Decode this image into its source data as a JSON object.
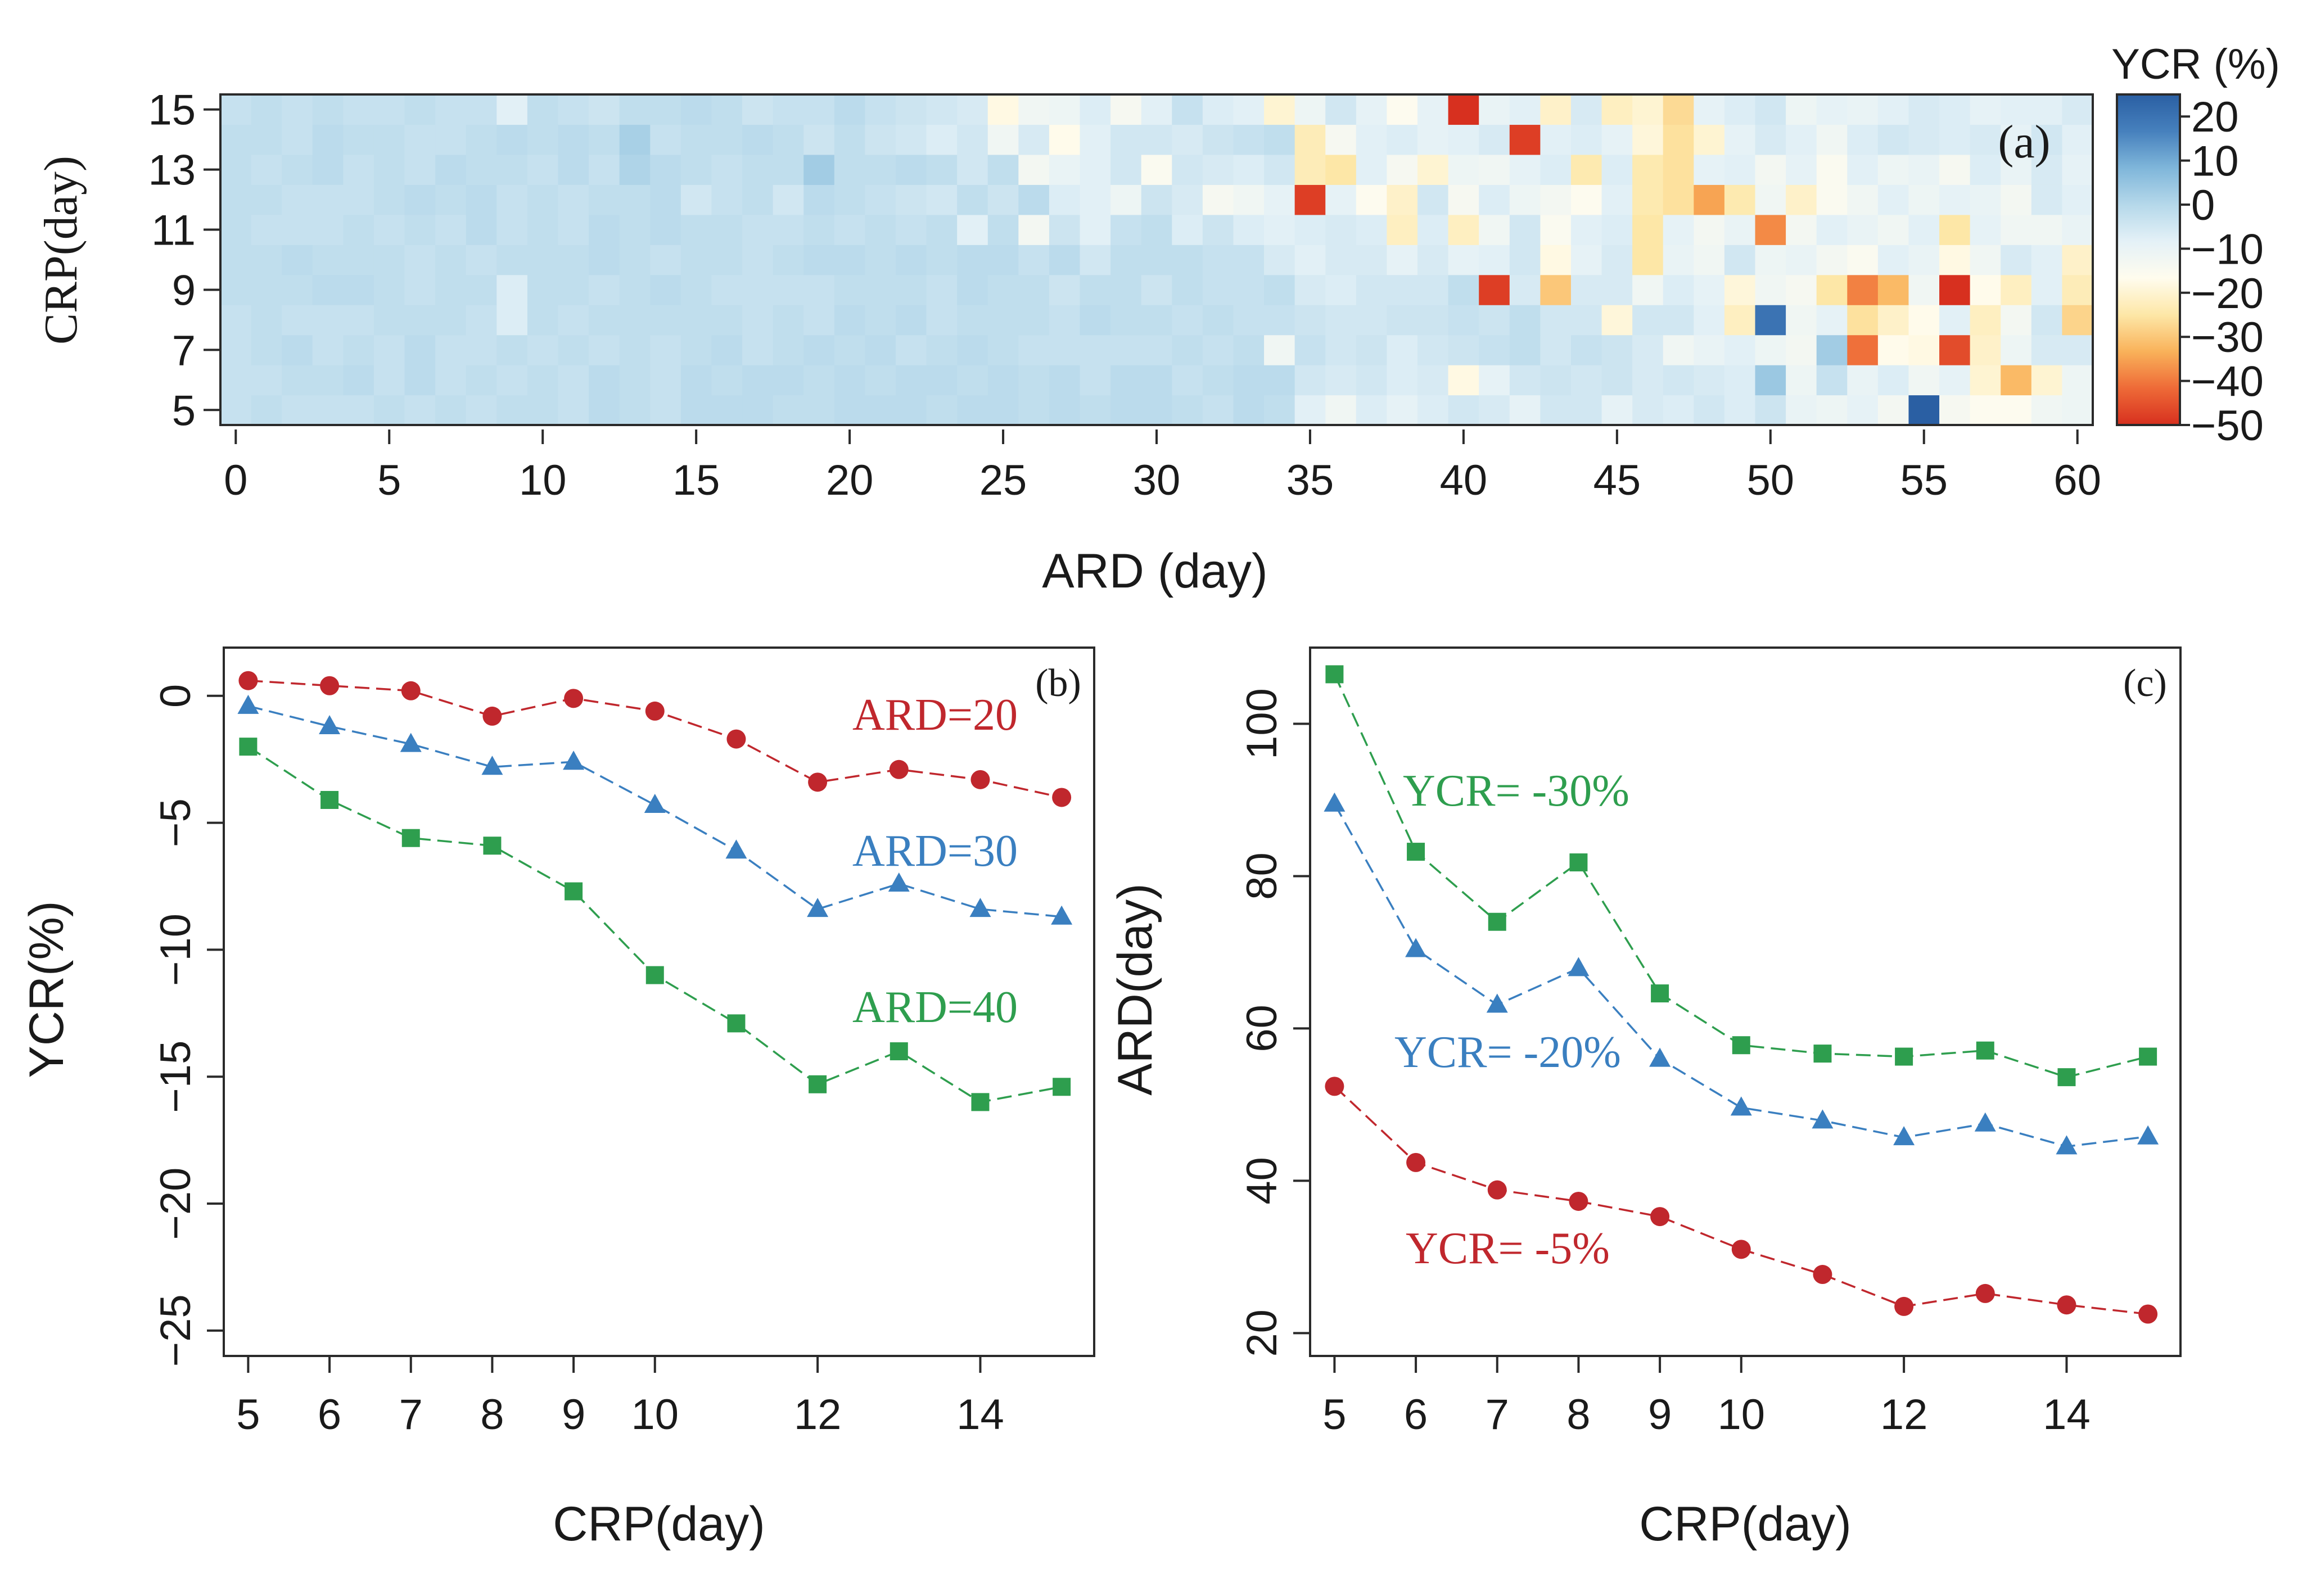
{
  "chart_data": [
    {
      "id": "a",
      "type": "heatmap",
      "panel_label": "(a)",
      "xlabel": "ARD (day)",
      "ylabel": "CRP(day)",
      "xticks": [
        0,
        5,
        10,
        15,
        20,
        25,
        30,
        35,
        40,
        45,
        50,
        55,
        60
      ],
      "xtick_labels": [
        "0",
        "5",
        "10",
        "15",
        "20",
        "25",
        "30",
        "35",
        "40",
        "45",
        "50",
        "55",
        "60"
      ],
      "yticks": [
        5,
        7,
        9,
        11,
        13,
        15
      ],
      "ytick_labels": [
        "5",
        "7",
        "9",
        "11",
        "13",
        "15"
      ],
      "x_range": [
        0,
        60
      ],
      "y_range": [
        5,
        15
      ],
      "colorbar": {
        "title": "YCR (%)",
        "range": [
          -50,
          25
        ],
        "tick_values": [
          20,
          10,
          0,
          -10,
          -20,
          -30,
          -40,
          -50
        ],
        "tick_labels": [
          "20",
          "10",
          "0",
          "−10",
          "−20",
          "−30",
          "−40",
          "−50"
        ],
        "stops": [
          "#d7301f",
          "#ee6a37",
          "#f9b25a",
          "#fde7a7",
          "#fffcee",
          "#e4f1f7",
          "#b5d8ea",
          "#7fb6da",
          "#4680bd",
          "#2a5fa3"
        ]
      },
      "rows": [
        {
          "crp": 5,
          "values": [
            -3,
            -2,
            -3,
            -3,
            -3,
            -2,
            -3,
            -2,
            -3,
            -2,
            -2,
            -3,
            -1,
            -2,
            -3,
            -1,
            -1,
            -1,
            -2,
            -2,
            -1,
            -1,
            -1,
            -2,
            -1,
            -1,
            -2,
            -1,
            -2,
            -1,
            -1,
            -2,
            -3,
            -1,
            -2,
            -8,
            -12,
            -7,
            -9,
            -7,
            -5,
            -6,
            -9,
            -5,
            -5,
            -9,
            -6,
            -7,
            -5,
            -7,
            -4,
            -10,
            -11,
            -9,
            -13,
            25,
            -14,
            -16,
            -16,
            -12,
            -11
          ]
        },
        {
          "crp": 6,
          "values": [
            -3,
            -3,
            -2,
            -2,
            -1,
            -3,
            -1,
            -3,
            -2,
            -3,
            -2,
            -3,
            -1,
            -2,
            -3,
            -1,
            -2,
            -1,
            -1,
            -2,
            -1,
            -2,
            -1,
            -1,
            -2,
            -1,
            -2,
            -1,
            -3,
            -1,
            -1,
            -3,
            -2,
            -1,
            -1,
            -5,
            -6,
            -5,
            -7,
            -6,
            -18,
            -9,
            -5,
            -4,
            -5,
            -4,
            -6,
            -5,
            -6,
            -7,
            4,
            -11,
            -3,
            -10,
            -7,
            -12,
            -9,
            -20,
            -32,
            -20,
            -11
          ]
        },
        {
          "crp": 7,
          "values": [
            -3,
            -2,
            -1,
            -3,
            -2,
            -3,
            -1,
            -3,
            -3,
            -2,
            -3,
            -2,
            -3,
            -2,
            -3,
            -2,
            -1,
            -3,
            -2,
            -1,
            -2,
            -1,
            -3,
            -2,
            -1,
            -2,
            -3,
            -3,
            -3,
            -3,
            -3,
            -2,
            -3,
            -2,
            -12,
            -3,
            -5,
            -4,
            -7,
            -5,
            -4,
            -3,
            -2,
            -5,
            -3,
            -4,
            -6,
            -12,
            -10,
            -8,
            -11,
            -13,
            3,
            -41,
            -17,
            -18,
            -46,
            -21,
            -11,
            -6,
            -6
          ]
        },
        {
          "crp": 8,
          "values": [
            -3,
            -2,
            -3,
            -3,
            -3,
            -2,
            -2,
            -2,
            -3,
            -7,
            -2,
            -3,
            -2,
            -2,
            -2,
            -2,
            -2,
            -3,
            -2,
            -3,
            -1,
            -2,
            -1,
            -3,
            -2,
            -2,
            -2,
            -3,
            -1,
            -2,
            -2,
            -3,
            -2,
            -3,
            -3,
            -4,
            -5,
            -5,
            -4,
            -4,
            -3,
            -4,
            -2,
            -5,
            -5,
            -19,
            -5,
            -5,
            -8,
            -22,
            20,
            -12,
            -9,
            -26,
            -21,
            -17,
            -8,
            -22,
            -13,
            -5,
            -28
          ]
        },
        {
          "crp": 9,
          "values": [
            -2,
            -2,
            -2,
            -1,
            -1,
            -2,
            -3,
            -2,
            -2,
            -7,
            -2,
            -2,
            -3,
            -2,
            -1,
            -2,
            -3,
            -3,
            -3,
            -3,
            -2,
            -2,
            -2,
            -3,
            -1,
            -2,
            -2,
            -4,
            -2,
            -2,
            -4,
            -2,
            -3,
            -3,
            -2,
            -6,
            -7,
            -5,
            -5,
            -5,
            -2,
            -48,
            -6,
            -30,
            -6,
            -6,
            -12,
            -7,
            -9,
            -19,
            -12,
            -14,
            -25,
            -39,
            -32,
            -12,
            -52,
            -17,
            -22,
            -8,
            -23
          ]
        },
        {
          "crp": 10,
          "values": [
            -2,
            -2,
            -1,
            -2,
            -2,
            -2,
            -3,
            -2,
            -3,
            -2,
            -2,
            -2,
            -1,
            -2,
            -3,
            -2,
            -2,
            -3,
            -2,
            -1,
            -1,
            -2,
            -1,
            -2,
            -1,
            -1,
            -3,
            -1,
            -5,
            -2,
            -2,
            -2,
            -3,
            -3,
            -6,
            -8,
            -6,
            -6,
            -9,
            -6,
            -9,
            -8,
            -5,
            -18,
            -9,
            -6,
            -25,
            -10,
            -12,
            -5,
            -11,
            -10,
            -13,
            -15,
            -8,
            -10,
            -18,
            -12,
            -6,
            -8,
            -21
          ]
        },
        {
          "crp": 11,
          "values": [
            -2,
            -3,
            -3,
            -3,
            -2,
            -3,
            -2,
            -3,
            -1,
            -3,
            -2,
            -3,
            -1,
            -2,
            -1,
            -2,
            -2,
            -3,
            -3,
            -2,
            -3,
            -2,
            -3,
            -2,
            -8,
            -2,
            -13,
            -4,
            -8,
            -3,
            -2,
            -7,
            -4,
            -7,
            -8,
            -7,
            -6,
            -7,
            -22,
            -7,
            -22,
            -12,
            -5,
            -15,
            -8,
            -7,
            -25,
            -9,
            -13,
            -10,
            -38,
            -13,
            -8,
            -10,
            -12,
            -8,
            -25,
            -9,
            -12,
            -12,
            -10
          ]
        },
        {
          "crp": 12,
          "values": [
            -2,
            -2,
            -3,
            -3,
            -3,
            -2,
            -1,
            -2,
            -1,
            -3,
            -2,
            -3,
            -2,
            -2,
            -1,
            -5,
            -3,
            -2,
            -5,
            -1,
            -2,
            -3,
            -4,
            -5,
            -2,
            -4,
            -1,
            -7,
            -8,
            -11,
            -4,
            -6,
            -14,
            -12,
            -9,
            -48,
            -9,
            -16,
            -21,
            -5,
            -14,
            -7,
            -11,
            -13,
            -16,
            -8,
            -24,
            -26,
            -35,
            -24,
            -12,
            -21,
            -15,
            -12,
            -8,
            -11,
            -9,
            -10,
            -13,
            -6,
            -8
          ]
        },
        {
          "crp": 13,
          "values": [
            -2,
            -3,
            -2,
            -1,
            -3,
            -2,
            -3,
            -1,
            -2,
            -2,
            -3,
            -1,
            -3,
            1,
            -1,
            -2,
            -3,
            -2,
            -2,
            3,
            -2,
            -2,
            -1,
            -2,
            -5,
            -2,
            -13,
            -10,
            -8,
            -5,
            -15,
            -5,
            -6,
            -7,
            -5,
            -23,
            -25,
            -8,
            -14,
            -20,
            -11,
            -12,
            -9,
            -7,
            -24,
            -7,
            -24,
            -26,
            -9,
            -8,
            -13,
            -9,
            -15,
            -8,
            -11,
            -10,
            -14,
            -7,
            -10,
            -6,
            -9
          ]
        },
        {
          "crp": 14,
          "values": [
            -2,
            -2,
            -3,
            -1,
            -2,
            -2,
            -3,
            -3,
            -2,
            -1,
            -2,
            -1,
            -2,
            2,
            -3,
            -2,
            -2,
            -1,
            -2,
            -4,
            -2,
            -4,
            -5,
            -7,
            -5,
            -12,
            -6,
            -17,
            -8,
            -5,
            -5,
            -6,
            -4,
            -3,
            -2,
            -23,
            -14,
            -8,
            -7,
            -9,
            -8,
            -6,
            -48,
            -8,
            -7,
            -9,
            -19,
            -26,
            -20,
            -9,
            -6,
            -8,
            -12,
            -7,
            -5,
            -6,
            -7,
            -6,
            -9,
            -5,
            -8
          ]
        },
        {
          "crp": 15,
          "values": [
            -3,
            -2,
            -3,
            -2,
            -3,
            -3,
            -2,
            -3,
            -3,
            -8,
            -2,
            -3,
            -4,
            -2,
            -2,
            -1,
            -2,
            -4,
            -3,
            -3,
            -1,
            -3,
            -4,
            -5,
            -6,
            -18,
            -12,
            -11,
            -7,
            -14,
            -8,
            -3,
            -7,
            -8,
            -20,
            -11,
            -5,
            -9,
            -16,
            -9,
            -52,
            -10,
            -8,
            -21,
            -6,
            -22,
            -20,
            -27,
            -9,
            -7,
            -5,
            -11,
            -9,
            -10,
            -8,
            -6,
            -7,
            -9,
            -8,
            -8,
            -6
          ]
        }
      ]
    },
    {
      "id": "b",
      "type": "line",
      "panel_label": "(b)",
      "xlabel": "CRP(day)",
      "ylabel": "YCR(%)",
      "x": [
        5,
        6,
        7,
        8,
        9,
        10,
        11,
        12,
        13,
        14,
        15
      ],
      "xticks": [
        5,
        6,
        7,
        8,
        9,
        10,
        12,
        14
      ],
      "xtick_labels": [
        "5",
        "6",
        "7",
        "8",
        "9",
        "10",
        "12",
        "14"
      ],
      "yticks": [
        0,
        -5,
        -10,
        -15,
        -20,
        -25
      ],
      "ytick_labels": [
        "0",
        "−5",
        "−10",
        "−15",
        "−20",
        "−25"
      ],
      "xlim": [
        4.7,
        15.4
      ],
      "ylim": [
        -26,
        1.9
      ],
      "series": [
        {
          "name": "ARD=20",
          "color": "#c0272d",
          "marker": "circle",
          "values": [
            0.6,
            0.4,
            0.2,
            -0.8,
            -0.1,
            -0.6,
            -1.7,
            -3.4,
            -2.9,
            -3.3,
            -4.0
          ]
        },
        {
          "name": "ARD=30",
          "color": "#3a7fc0",
          "marker": "triangle",
          "values": [
            -0.4,
            -1.2,
            -1.9,
            -2.8,
            -2.6,
            -4.3,
            -6.1,
            -8.4,
            -7.4,
            -8.4,
            -8.7
          ]
        },
        {
          "name": "ARD=40",
          "color": "#2e9e4e",
          "marker": "square",
          "values": [
            -2.0,
            -4.1,
            -5.6,
            -5.9,
            -7.7,
            -11.0,
            -12.9,
            -15.3,
            -14.0,
            -16.0,
            -15.4
          ]
        }
      ]
    },
    {
      "id": "c",
      "type": "line",
      "panel_label": "(c)",
      "xlabel": "CRP(day)",
      "ylabel": "ARD(day)",
      "x": [
        5,
        6,
        7,
        8,
        9,
        10,
        11,
        12,
        13,
        14,
        15
      ],
      "xticks": [
        5,
        6,
        7,
        8,
        9,
        10,
        12,
        14
      ],
      "xtick_labels": [
        "5",
        "6",
        "7",
        "8",
        "9",
        "10",
        "12",
        "14"
      ],
      "yticks": [
        20,
        40,
        60,
        80,
        100
      ],
      "ytick_labels": [
        "20",
        "40",
        "60",
        "80",
        "100"
      ],
      "xlim": [
        4.7,
        15.4
      ],
      "ylim": [
        17,
        110
      ],
      "series": [
        {
          "name": "YCR= -30%",
          "color": "#2e9e4e",
          "marker": "square",
          "values": [
            106.5,
            83.2,
            74.0,
            81.8,
            64.6,
            57.8,
            56.7,
            56.3,
            57.1,
            53.6,
            56.3
          ]
        },
        {
          "name": "YCR= -20%",
          "color": "#3a7fc0",
          "marker": "triangle",
          "values": [
            89.5,
            70.4,
            63.1,
            67.9,
            56.0,
            49.6,
            47.9,
            45.7,
            47.5,
            44.5,
            45.8
          ]
        },
        {
          "name": "YCR= -5%",
          "color": "#c0272d",
          "marker": "circle",
          "values": [
            52.4,
            42.4,
            38.8,
            37.3,
            35.3,
            31.0,
            27.7,
            23.5,
            25.2,
            23.7,
            22.5
          ]
        }
      ]
    }
  ]
}
